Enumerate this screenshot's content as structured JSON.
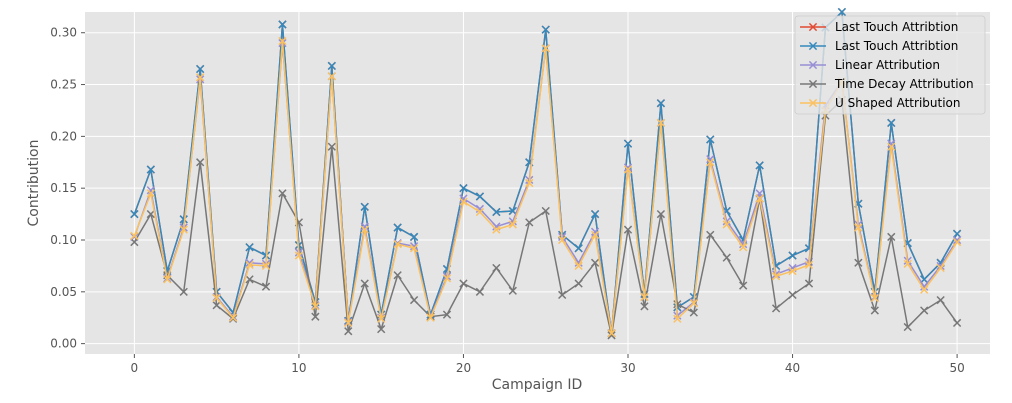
{
  "chart_data": {
    "type": "line",
    "title": "",
    "xlabel": "Campaign ID",
    "ylabel": "Contribution",
    "xlim": [
      -3,
      52
    ],
    "ylim": [
      -0.01,
      0.32
    ],
    "xticks": [
      0,
      10,
      20,
      30,
      40,
      50
    ],
    "yticks": [
      0.0,
      0.05,
      0.1,
      0.15,
      0.2,
      0.25,
      0.3
    ],
    "ytick_labels": [
      "0.00",
      "0.05",
      "0.10",
      "0.15",
      "0.20",
      "0.25",
      "0.30"
    ],
    "grid": true,
    "legend_position": "top-right",
    "marker": "x",
    "x": [
      0,
      1,
      2,
      3,
      4,
      5,
      6,
      7,
      8,
      9,
      10,
      11,
      12,
      13,
      14,
      15,
      16,
      17,
      18,
      19,
      20,
      21,
      22,
      23,
      24,
      25,
      26,
      27,
      28,
      29,
      30,
      31,
      32,
      33,
      34,
      35,
      36,
      37,
      38,
      39,
      40,
      41,
      42,
      43,
      44,
      45,
      46,
      47,
      48,
      49,
      50
    ],
    "series": [
      {
        "name": "Last Touch Attribtion",
        "color": "#e24a33",
        "values": [
          0.125,
          0.168,
          0.07,
          0.12,
          0.265,
          0.05,
          0.03,
          0.093,
          0.085,
          0.308,
          0.095,
          0.04,
          0.268,
          0.022,
          0.132,
          0.028,
          0.112,
          0.103,
          0.028,
          0.072,
          0.15,
          0.142,
          0.127,
          0.128,
          0.175,
          0.303,
          0.105,
          0.092,
          0.125,
          0.01,
          0.193,
          0.048,
          0.232,
          0.035,
          0.045,
          0.197,
          0.128,
          0.1,
          0.172,
          0.075,
          0.085,
          0.092,
          0.305,
          0.32,
          0.135,
          0.05,
          0.213,
          0.097,
          0.062,
          0.078,
          0.106
        ]
      },
      {
        "name": "Last Touch Attribtion",
        "color": "#348abd",
        "values": [
          0.125,
          0.168,
          0.07,
          0.12,
          0.265,
          0.05,
          0.03,
          0.093,
          0.085,
          0.308,
          0.095,
          0.04,
          0.268,
          0.022,
          0.132,
          0.028,
          0.112,
          0.103,
          0.028,
          0.072,
          0.15,
          0.142,
          0.127,
          0.128,
          0.175,
          0.303,
          0.105,
          0.092,
          0.125,
          0.01,
          0.193,
          0.048,
          0.232,
          0.035,
          0.045,
          0.197,
          0.128,
          0.1,
          0.172,
          0.075,
          0.085,
          0.092,
          0.305,
          0.32,
          0.135,
          0.05,
          0.213,
          0.097,
          0.062,
          0.078,
          0.106
        ]
      },
      {
        "name": "Linear Attribution",
        "color": "#988ed5",
        "values": [
          0.103,
          0.148,
          0.063,
          0.112,
          0.255,
          0.045,
          0.026,
          0.078,
          0.077,
          0.29,
          0.088,
          0.037,
          0.258,
          0.021,
          0.113,
          0.025,
          0.097,
          0.094,
          0.026,
          0.065,
          0.14,
          0.13,
          0.113,
          0.118,
          0.158,
          0.285,
          0.103,
          0.078,
          0.108,
          0.01,
          0.17,
          0.045,
          0.213,
          0.027,
          0.04,
          0.178,
          0.118,
          0.096,
          0.145,
          0.067,
          0.073,
          0.079,
          0.23,
          0.253,
          0.115,
          0.045,
          0.193,
          0.08,
          0.055,
          0.075,
          0.1
        ]
      },
      {
        "name": "Time Decay Attribution",
        "color": "#777777",
        "values": [
          0.098,
          0.125,
          0.066,
          0.05,
          0.175,
          0.037,
          0.024,
          0.062,
          0.055,
          0.145,
          0.117,
          0.026,
          0.19,
          0.012,
          0.058,
          0.014,
          0.066,
          0.042,
          0.026,
          0.028,
          0.058,
          0.05,
          0.073,
          0.051,
          0.117,
          0.128,
          0.047,
          0.058,
          0.078,
          0.008,
          0.11,
          0.036,
          0.125,
          0.038,
          0.03,
          0.105,
          0.083,
          0.056,
          0.14,
          0.034,
          0.047,
          0.058,
          0.22,
          0.235,
          0.078,
          0.032,
          0.103,
          0.016,
          0.032,
          0.042,
          0.02
        ]
      },
      {
        "name": "U Shaped Attribution",
        "color": "#fbc15e",
        "values": [
          0.104,
          0.145,
          0.062,
          0.11,
          0.257,
          0.044,
          0.025,
          0.076,
          0.075,
          0.292,
          0.085,
          0.036,
          0.258,
          0.02,
          0.11,
          0.024,
          0.096,
          0.092,
          0.025,
          0.063,
          0.137,
          0.127,
          0.11,
          0.115,
          0.155,
          0.285,
          0.1,
          0.075,
          0.105,
          0.01,
          0.168,
          0.045,
          0.213,
          0.024,
          0.039,
          0.175,
          0.115,
          0.093,
          0.14,
          0.065,
          0.07,
          0.076,
          0.225,
          0.253,
          0.112,
          0.044,
          0.19,
          0.077,
          0.052,
          0.073,
          0.098
        ]
      }
    ]
  }
}
